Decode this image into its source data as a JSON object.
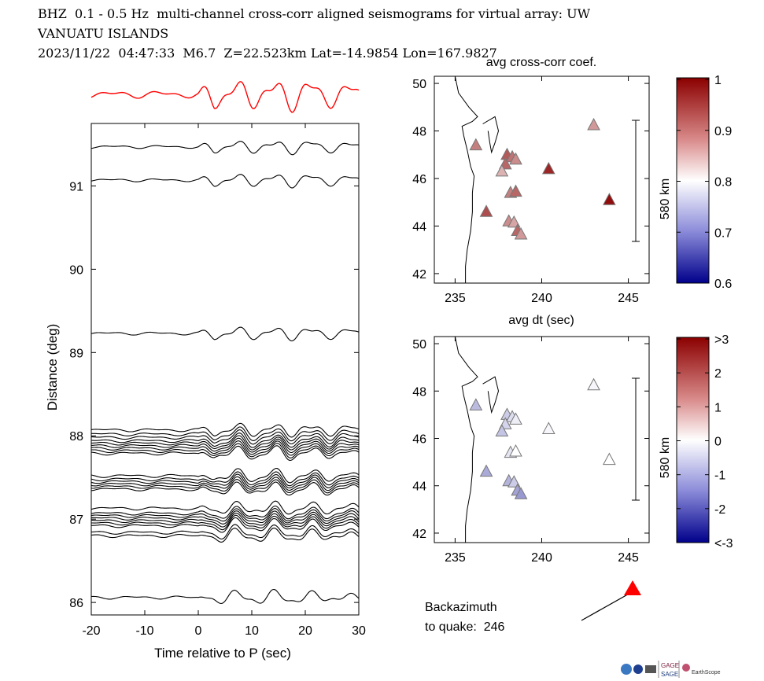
{
  "header": {
    "line1": "BHZ  0.1 - 0.5 Hz  multi-channel cross-corr aligned seismograms for virtual array: UW",
    "line2": "VANUATU ISLANDS",
    "line3": "2023/11/22  04:47:33  M6.7  Z=22.523km Lat=-14.9854 Lon=167.9827"
  },
  "colors": {
    "stack": "#ff0000",
    "traces": "#000000",
    "arrow": "#ff0000"
  },
  "chart_data": [
    {
      "type": "line",
      "name": "record-section",
      "xlabel": "Time relative to P (sec)",
      "ylabel": "Distance (deg)",
      "xlim": [
        -20,
        30
      ],
      "ylim": [
        85.85,
        91.75
      ],
      "xticks": [
        -20,
        -10,
        0,
        10,
        20,
        30
      ],
      "yticks": [
        86,
        87,
        88,
        89,
        90,
        91
      ],
      "trace_distances": [
        91.47,
        91.07,
        89.23,
        88.07,
        88.02,
        87.98,
        87.94,
        87.91,
        87.88,
        87.85,
        87.82,
        87.79,
        87.52,
        87.48,
        87.45,
        87.42,
        87.39,
        87.36,
        87.13,
        87.07,
        87.04,
        87.01,
        86.98,
        86.95,
        86.92,
        86.84,
        86.8,
        86.06
      ],
      "stack_trace": "red aligned stack above record section"
    },
    {
      "type": "scatter",
      "name": "avg-cross-corr-map",
      "title": "avg cross-corr coef.",
      "xlabel": "avg dt (sec)",
      "xlim": [
        233.8,
        246.2
      ],
      "ylim": [
        41.6,
        50.3
      ],
      "xticks": [
        235,
        240,
        245
      ],
      "yticks": [
        42,
        44,
        46,
        48,
        50
      ],
      "scale_bar": "580 km",
      "colorbar": {
        "ticks": [
          "1",
          "0.9",
          "0.8",
          "0.7",
          "0.6"
        ],
        "range": [
          0.6,
          1
        ]
      },
      "stations": [
        {
          "lon": 243.0,
          "lat": 48.25,
          "value": 0.88
        },
        {
          "lon": 236.2,
          "lat": 47.4,
          "value": 0.9
        },
        {
          "lon": 238.0,
          "lat": 47.0,
          "value": 0.93
        },
        {
          "lon": 238.3,
          "lat": 46.9,
          "value": 0.91
        },
        {
          "lon": 238.5,
          "lat": 46.8,
          "value": 0.89
        },
        {
          "lon": 237.9,
          "lat": 46.6,
          "value": 0.92
        },
        {
          "lon": 237.7,
          "lat": 46.3,
          "value": 0.86
        },
        {
          "lon": 240.4,
          "lat": 46.4,
          "value": 0.97
        },
        {
          "lon": 238.2,
          "lat": 45.4,
          "value": 0.9
        },
        {
          "lon": 238.5,
          "lat": 45.45,
          "value": 0.92
        },
        {
          "lon": 243.9,
          "lat": 45.1,
          "value": 0.99
        },
        {
          "lon": 236.8,
          "lat": 44.6,
          "value": 0.94
        },
        {
          "lon": 238.1,
          "lat": 44.2,
          "value": 0.89
        },
        {
          "lon": 238.4,
          "lat": 44.15,
          "value": 0.87
        },
        {
          "lon": 238.6,
          "lat": 43.8,
          "value": 0.92
        },
        {
          "lon": 238.8,
          "lat": 43.65,
          "value": 0.88
        }
      ]
    },
    {
      "type": "scatter",
      "name": "avg-dt-map",
      "xlim": [
        233.8,
        246.2
      ],
      "ylim": [
        41.6,
        50.3
      ],
      "xticks": [
        235,
        240,
        245
      ],
      "yticks": [
        42,
        44,
        46,
        48,
        50
      ],
      "scale_bar": "580 km",
      "colorbar": {
        "ticks": [
          ">3",
          "2",
          "1",
          "0",
          "-1",
          "-2",
          "<-3"
        ],
        "range": [
          -3,
          3
        ]
      },
      "stations": [
        {
          "lon": 243.0,
          "lat": 48.25,
          "value": -0.1
        },
        {
          "lon": 236.2,
          "lat": 47.4,
          "value": -0.8
        },
        {
          "lon": 238.0,
          "lat": 47.0,
          "value": -0.6
        },
        {
          "lon": 238.3,
          "lat": 46.9,
          "value": -0.4
        },
        {
          "lon": 238.5,
          "lat": 46.8,
          "value": -0.2
        },
        {
          "lon": 237.9,
          "lat": 46.6,
          "value": -0.5
        },
        {
          "lon": 237.7,
          "lat": 46.3,
          "value": -0.7
        },
        {
          "lon": 240.4,
          "lat": 46.4,
          "value": -0.1
        },
        {
          "lon": 238.2,
          "lat": 45.4,
          "value": -0.3
        },
        {
          "lon": 238.5,
          "lat": 45.45,
          "value": 0.0
        },
        {
          "lon": 243.9,
          "lat": 45.1,
          "value": 0.0
        },
        {
          "lon": 236.8,
          "lat": 44.6,
          "value": -1.0
        },
        {
          "lon": 238.1,
          "lat": 44.2,
          "value": -0.9
        },
        {
          "lon": 238.4,
          "lat": 44.15,
          "value": -0.6
        },
        {
          "lon": 238.6,
          "lat": 43.8,
          "value": -1.1
        },
        {
          "lon": 238.8,
          "lat": 43.65,
          "value": -1.2
        }
      ]
    }
  ],
  "backazimuth": {
    "label_line1": "Backazimuth",
    "label_line2": "to quake:  246",
    "value": 246
  },
  "footer": {
    "logo_text_1": "GAGE",
    "logo_text_2": "SAGE",
    "logo_text_3": "EarthScope"
  }
}
